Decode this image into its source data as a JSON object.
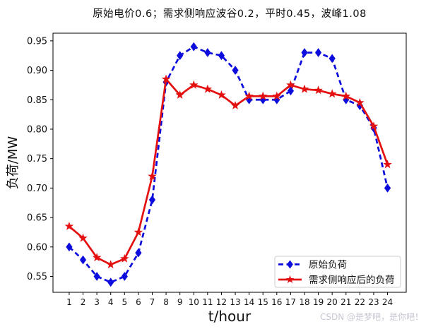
{
  "figure": {
    "watermark": "CSDN @是梦吧，是你吧！"
  },
  "chart_data": {
    "type": "line",
    "title": "原始电价0.6；需求侧响应波谷0.2，平时0.45，波峰1.08",
    "xlabel": "t/hour",
    "ylabel": "负荷/MW",
    "x": [
      1,
      2,
      3,
      4,
      5,
      6,
      7,
      8,
      9,
      10,
      11,
      12,
      13,
      14,
      15,
      16,
      17,
      18,
      19,
      20,
      21,
      22,
      23,
      24
    ],
    "xticks": [
      1,
      2,
      3,
      4,
      5,
      6,
      7,
      8,
      9,
      10,
      11,
      12,
      13,
      14,
      15,
      16,
      17,
      18,
      19,
      20,
      21,
      22,
      23,
      24
    ],
    "yticks": [
      0.55,
      0.6,
      0.65,
      0.7,
      0.75,
      0.8,
      0.85,
      0.9,
      0.95
    ],
    "ylim": [
      0.52,
      0.96
    ],
    "grid": false,
    "legend_position": "lower right",
    "series": [
      {
        "name": "原始负荷",
        "color": "#0c0cdd",
        "line_style": "dashed",
        "marker": "diamond",
        "values": [
          0.6,
          0.578,
          0.55,
          0.54,
          0.55,
          0.59,
          0.68,
          0.88,
          0.925,
          0.94,
          0.93,
          0.925,
          0.9,
          0.85,
          0.85,
          0.85,
          0.865,
          0.93,
          0.93,
          0.92,
          0.85,
          0.84,
          0.802,
          0.7
        ]
      },
      {
        "name": "需求侧响应后的负荷",
        "color": "#e41010",
        "line_style": "solid",
        "marker": "star",
        "values": [
          0.635,
          0.615,
          0.582,
          0.57,
          0.58,
          0.625,
          0.72,
          0.885,
          0.858,
          0.875,
          0.868,
          0.858,
          0.84,
          0.856,
          0.856,
          0.856,
          0.875,
          0.868,
          0.866,
          0.86,
          0.856,
          0.845,
          0.805,
          0.74
        ]
      }
    ],
    "frame_color": "#000000",
    "tick_color": "#000000"
  }
}
